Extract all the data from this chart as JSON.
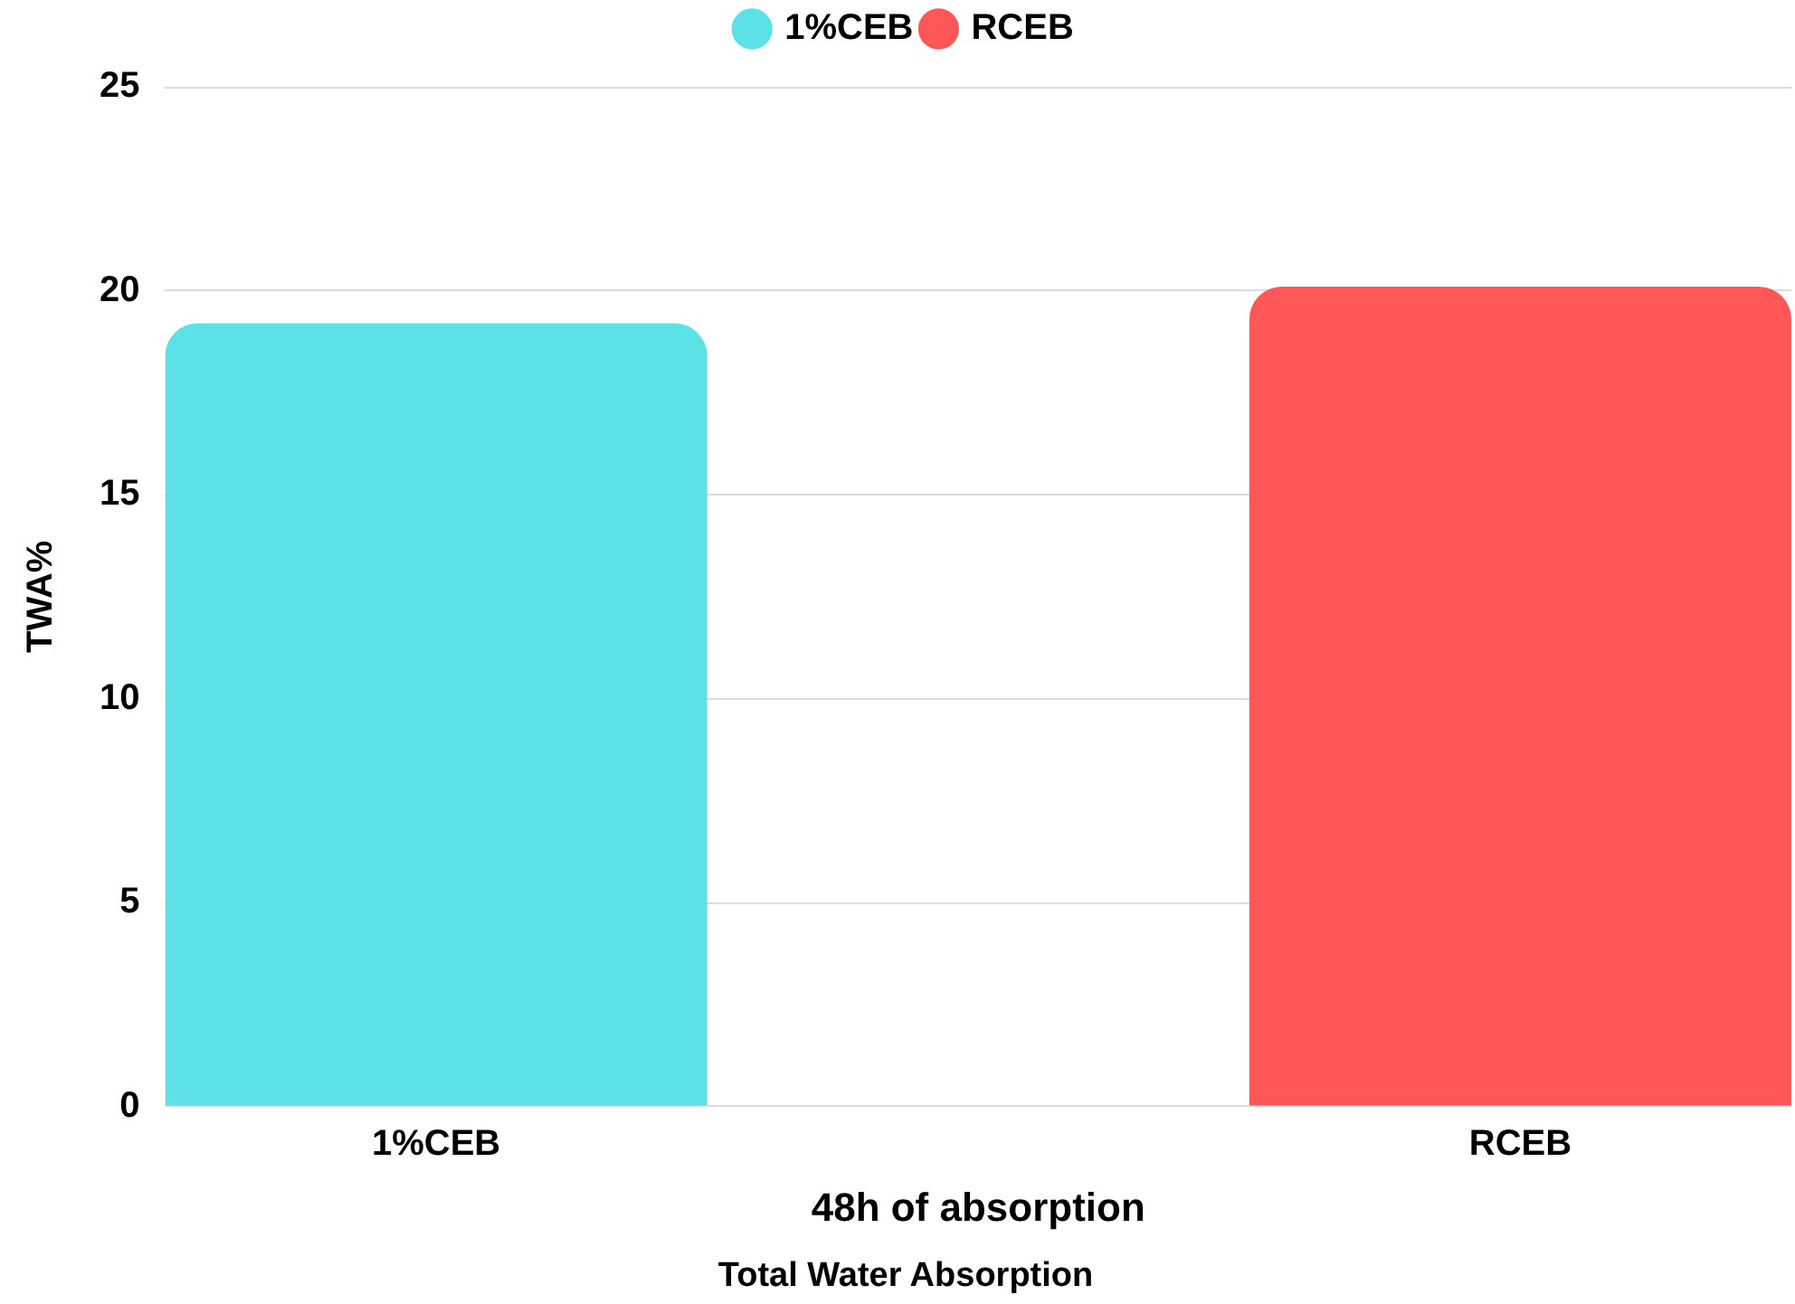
{
  "chart_data": {
    "type": "bar",
    "title": "Total Water Absorption",
    "xlabel": "48h of absorption",
    "ylabel": "TWA%",
    "categories": [
      "1%CEB",
      "RCEB"
    ],
    "series": [
      {
        "name": "1%CEB",
        "color": "#5ce1e6",
        "values": [
          19.2,
          null
        ]
      },
      {
        "name": "RCEB",
        "color": "#ff5757",
        "values": [
          null,
          20.1
        ]
      }
    ],
    "ylim": [
      0,
      25
    ],
    "yticks": [
      0,
      5,
      10,
      15,
      20,
      25
    ],
    "grid": "y",
    "legend": "top"
  }
}
